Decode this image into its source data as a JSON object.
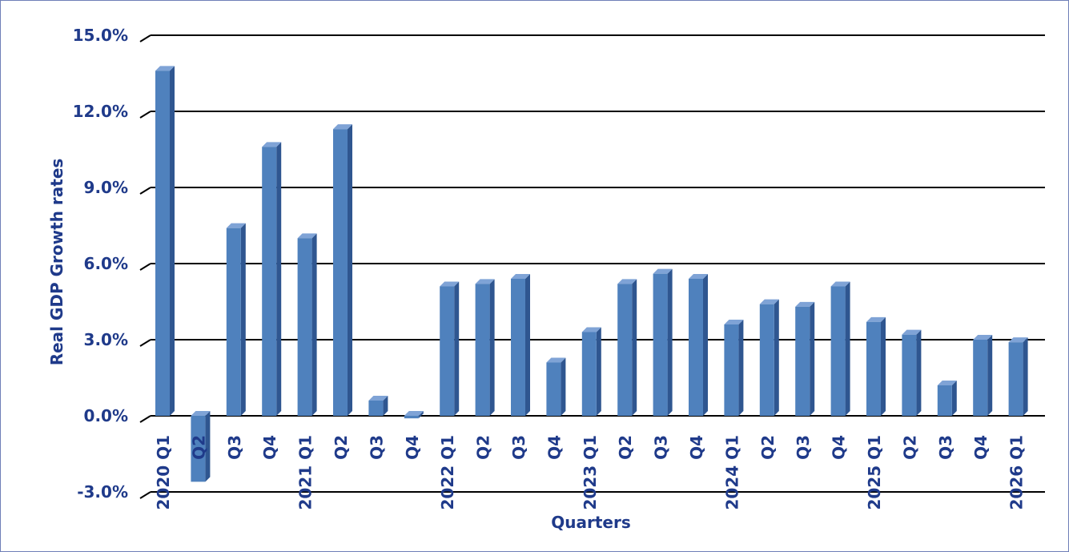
{
  "chart_data": {
    "type": "bar",
    "title": "",
    "xlabel": "Quarters",
    "ylabel": "Real GDP Growth rates",
    "ylim": [
      -3.0,
      15.0
    ],
    "yticks": [
      "-3.0%",
      "0.0%",
      "3.0%",
      "6.0%",
      "9.0%",
      "12.0%",
      "15.0%"
    ],
    "categories": [
      "2020 Q1",
      "Q2",
      "Q3",
      "Q4",
      "2021 Q1",
      "Q2",
      "Q3",
      "Q4",
      "2022 Q1",
      "Q2",
      "Q3",
      "Q4",
      "2023 Q1",
      "Q2",
      "Q3",
      "Q4",
      "2024 Q1",
      "Q2",
      "Q3",
      "Q4",
      "2025 Q1",
      "Q2",
      "Q3",
      "Q4",
      "2026 Q1"
    ],
    "values": [
      13.6,
      -2.6,
      7.4,
      10.6,
      7.0,
      11.3,
      0.6,
      -0.1,
      5.1,
      5.2,
      5.4,
      2.1,
      3.3,
      5.2,
      5.6,
      5.4,
      3.6,
      4.4,
      4.3,
      5.1,
      3.7,
      3.2,
      1.2,
      3.0,
      2.9
    ],
    "grid": true,
    "legend": "none",
    "colors": {
      "bar": "#4f81bd",
      "bar_side": "#2f5690",
      "bar_top": "#7fa3d6",
      "text": "#1f3a8a",
      "grid": "#000000"
    }
  }
}
